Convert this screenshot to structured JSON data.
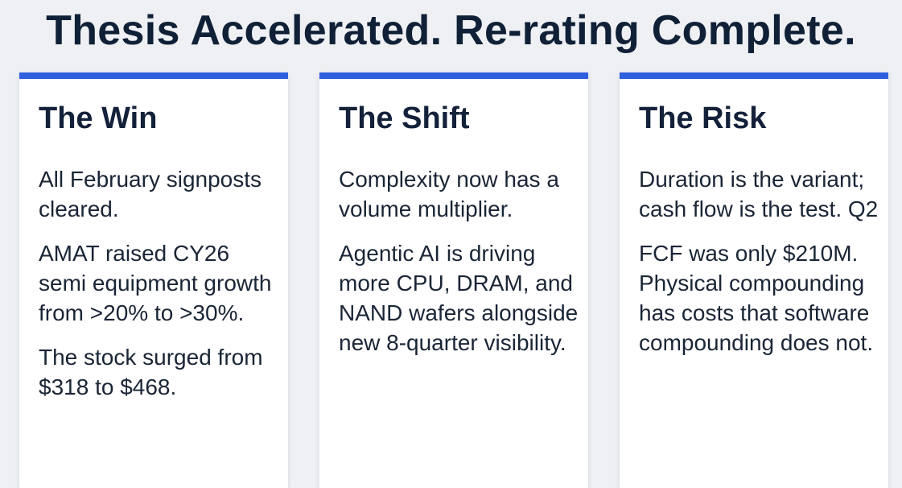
{
  "title": "Thesis Accelerated. Re-rating Complete.",
  "cards": [
    {
      "heading": "The Win",
      "paragraphs": [
        "All February signposts cleared.",
        "AMAT raised CY26 semi equipment growth from >20% to >30%.",
        "The stock surged from $318 to $468."
      ]
    },
    {
      "heading": "The Shift",
      "paragraphs": [
        "Complexity now has a volume multiplier.",
        "Agentic AI is driving more CPU, DRAM, and NAND wafers alongside new 8-quarter visibility."
      ]
    },
    {
      "heading": "The Risk",
      "paragraphs": [
        "Duration is the variant; cash flow is the test. Q2",
        "FCF was only $210M. Physical compounding has costs that software compounding does not."
      ]
    }
  ],
  "colors": {
    "accent": "#2f5fde",
    "background": "#eef0f4",
    "text": "#102036"
  }
}
